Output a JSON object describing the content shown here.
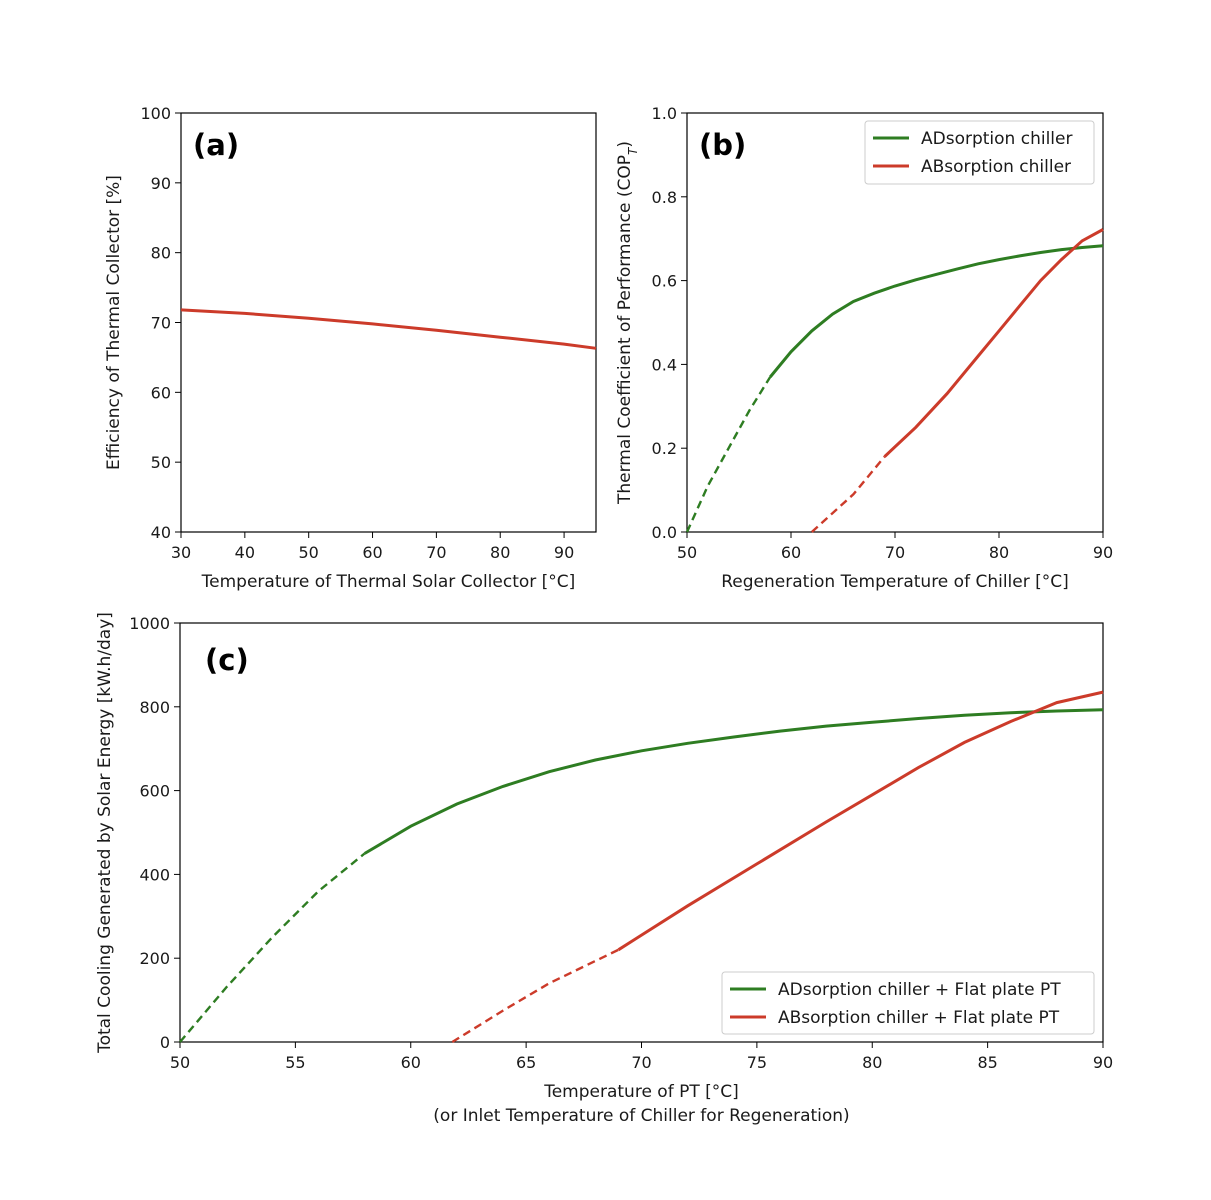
{
  "colors": {
    "adsorption": "#2e7d22",
    "absorption": "#cc3b2a"
  },
  "chart_data": [
    {
      "type": "line",
      "panel_label": "(a)",
      "xlabel": "Temperature of Thermal Solar Collector [°C]",
      "ylabel": "Efficiency of Thermal Collector [%]",
      "xlim": [
        30,
        95
      ],
      "ylim": [
        40,
        100
      ],
      "xticks": [
        30,
        40,
        50,
        60,
        70,
        80,
        90
      ],
      "yticks": [
        40,
        50,
        60,
        70,
        80,
        90,
        100
      ],
      "grid": false,
      "series": [
        {
          "color": "absorption",
          "x": [
            30,
            40,
            50,
            60,
            70,
            80,
            90,
            95
          ],
          "y": [
            71.8,
            71.3,
            70.6,
            69.8,
            68.9,
            67.9,
            66.9,
            66.3
          ],
          "dashed_below": null
        }
      ]
    },
    {
      "type": "line",
      "panel_label": "(b)",
      "xlabel": "Regeneration Temperature of Chiller [°C]",
      "ylabel": "Thermal Coefficient of Performance (COP",
      "ylabel_sub": "T",
      "ylabel_end": ")",
      "xlim": [
        50,
        90
      ],
      "ylim": [
        0,
        1.0
      ],
      "xticks": [
        50,
        60,
        70,
        80,
        90
      ],
      "yticks": [
        0.0,
        0.2,
        0.4,
        0.6,
        0.8,
        1.0
      ],
      "ytick_labels": [
        "0.0",
        "0.2",
        "0.4",
        "0.6",
        "0.8",
        "1.0"
      ],
      "grid": false,
      "legend": "top-right",
      "series": [
        {
          "name": "ADsorption chiller",
          "color": "adsorption",
          "x": [
            50,
            52,
            54,
            56,
            58,
            60,
            62,
            64,
            66,
            68,
            70,
            72,
            74,
            76,
            78,
            80,
            82,
            84,
            86,
            88,
            90
          ],
          "y": [
            0.0,
            0.11,
            0.2,
            0.29,
            0.37,
            0.43,
            0.48,
            0.52,
            0.55,
            0.57,
            0.587,
            0.602,
            0.615,
            0.628,
            0.64,
            0.65,
            0.659,
            0.667,
            0.674,
            0.679,
            0.683
          ],
          "dashed_below": 58
        },
        {
          "name": "ABsorption chiller",
          "color": "absorption",
          "x": [
            62,
            64,
            66,
            69,
            72,
            75,
            78,
            80,
            82,
            84,
            86,
            88,
            90
          ],
          "y": [
            0.0,
            0.045,
            0.09,
            0.18,
            0.25,
            0.33,
            0.42,
            0.48,
            0.54,
            0.6,
            0.65,
            0.695,
            0.722
          ],
          "dashed_below": 69
        }
      ]
    },
    {
      "type": "line",
      "panel_label": "(c)",
      "xlabel": "Temperature of PT [°C]",
      "xlabel2": "(or Inlet Temperature of Chiller for Regeneration)",
      "ylabel": "Total Cooling Generated by Solar Energy [kW.h/day]",
      "xlim": [
        50,
        90
      ],
      "ylim": [
        0,
        1000
      ],
      "xticks": [
        50,
        55,
        60,
        65,
        70,
        75,
        80,
        85,
        90
      ],
      "yticks": [
        0,
        200,
        400,
        600,
        800,
        1000
      ],
      "grid": false,
      "legend": "bottom-right",
      "series": [
        {
          "name": "ADsorption chiller + Flat plate PT",
          "color": "adsorption",
          "x": [
            50,
            52,
            54,
            56,
            58,
            60,
            62,
            64,
            66,
            68,
            70,
            72,
            74,
            76,
            78,
            80,
            82,
            84,
            86,
            88,
            90
          ],
          "y": [
            0,
            130,
            250,
            360,
            450,
            515,
            568,
            610,
            645,
            673,
            695,
            713,
            728,
            742,
            754,
            763,
            772,
            780,
            786,
            790,
            793
          ],
          "dashed_below": 58
        },
        {
          "name": "ABsorption chiller + Flat plate PT",
          "color": "absorption",
          "x": [
            61.8,
            64,
            66,
            69,
            72,
            75,
            78,
            80,
            82,
            84,
            86,
            88,
            90
          ],
          "y": [
            0,
            75,
            140,
            220,
            325,
            425,
            525,
            590,
            655,
            715,
            765,
            810,
            835
          ],
          "dashed_below": 69
        }
      ]
    }
  ]
}
